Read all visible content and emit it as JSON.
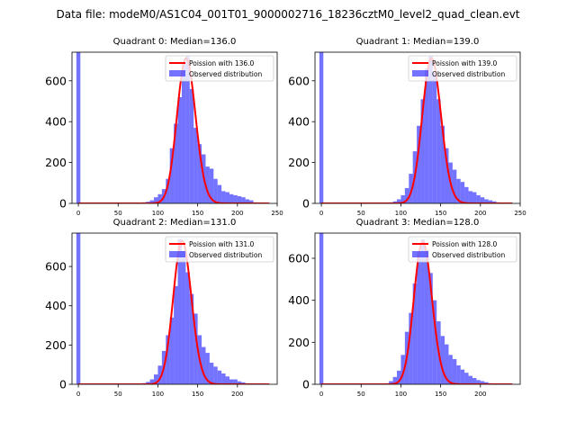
{
  "suptitle": "Data file: modeM0/AS1C04_001T01_9000002716_18236cztM0_level2_quad_clean.evt",
  "colors": {
    "hist": "#0000ff",
    "fit": "#ff0000",
    "axis": "#000000"
  },
  "legend_labels": {
    "observed": "Observed distribution"
  },
  "chart_data": [
    {
      "type": "bar",
      "title": "Quadrant 0: Median=136.0",
      "xlim": [
        -8,
        250
      ],
      "ylim": [
        0,
        740
      ],
      "xticks": [
        0,
        50,
        100,
        150,
        200,
        250
      ],
      "yticks": [
        0,
        200,
        400,
        600
      ],
      "legend_position": "top-right",
      "fit_label": "Poission with 136.0",
      "zero_bin_height": 740,
      "hist": {
        "bin_width": 5,
        "edges_start": [
          75,
          80,
          85,
          90,
          95,
          100,
          105,
          110,
          115,
          120,
          125,
          130,
          135,
          140,
          145,
          150,
          155,
          160,
          165,
          170,
          175,
          180,
          185,
          190,
          195,
          200,
          205,
          210,
          215,
          220
        ],
        "values": [
          2,
          5,
          8,
          15,
          30,
          45,
          70,
          120,
          270,
          390,
          520,
          690,
          720,
          560,
          370,
          290,
          240,
          180,
          170,
          120,
          90,
          60,
          55,
          45,
          40,
          35,
          30,
          20,
          15,
          5
        ]
      },
      "fit": {
        "mean": 136,
        "peak": 710
      }
    },
    {
      "type": "bar",
      "title": "Quadrant 1: Median=139.0",
      "xlim": [
        -8,
        250
      ],
      "ylim": [
        0,
        740
      ],
      "xticks": [
        0,
        50,
        100,
        150,
        200,
        250
      ],
      "yticks": [
        0,
        200,
        400,
        600
      ],
      "legend_position": "top-right",
      "fit_label": "Poission with 139.0",
      "zero_bin_height": 740,
      "hist": {
        "bin_width": 5,
        "edges_start": [
          85,
          90,
          95,
          100,
          105,
          110,
          115,
          120,
          125,
          130,
          135,
          140,
          145,
          150,
          155,
          160,
          165,
          170,
          175,
          180,
          185,
          190,
          195,
          200,
          205,
          210,
          215,
          220
        ],
        "values": [
          5,
          10,
          20,
          40,
          75,
          145,
          255,
          380,
          510,
          660,
          720,
          640,
          510,
          380,
          270,
          200,
          165,
          120,
          105,
          80,
          60,
          55,
          40,
          30,
          20,
          15,
          10,
          5
        ]
      },
      "fit": {
        "mean": 139,
        "peak": 710
      }
    },
    {
      "type": "bar",
      "title": "Quadrant 2: Median=131.0",
      "xlim": [
        -8,
        250
      ],
      "ylim": [
        0,
        770
      ],
      "xticks": [
        0,
        50,
        100,
        150,
        200
      ],
      "yticks": [
        0,
        200,
        400,
        600
      ],
      "legend_position": "top-right",
      "fit_label": "Poission with 131.0",
      "zero_bin_height": 770,
      "hist": {
        "bin_width": 5,
        "edges_start": [
          75,
          80,
          85,
          90,
          95,
          100,
          105,
          110,
          115,
          120,
          125,
          130,
          135,
          140,
          145,
          150,
          155,
          160,
          165,
          170,
          175,
          180,
          185,
          190,
          195,
          200,
          205,
          210,
          215
        ],
        "values": [
          3,
          6,
          12,
          25,
          50,
          95,
          170,
          250,
          340,
          500,
          740,
          680,
          570,
          460,
          360,
          250,
          190,
          160,
          110,
          90,
          70,
          55,
          40,
          25,
          25,
          15,
          10,
          5,
          3
        ]
      },
      "fit": {
        "mean": 131,
        "peak": 730
      }
    },
    {
      "type": "bar",
      "title": "Quadrant 3: Median=128.0",
      "xlim": [
        -8,
        250
      ],
      "ylim": [
        0,
        720
      ],
      "xticks": [
        0,
        50,
        100,
        150,
        200
      ],
      "yticks": [
        0,
        200,
        400,
        600
      ],
      "legend_position": "top-right",
      "fit_label": "Poission with 128.0",
      "zero_bin_height": 720,
      "hist": {
        "bin_width": 5,
        "edges_start": [
          80,
          85,
          90,
          95,
          100,
          105,
          110,
          115,
          120,
          125,
          130,
          135,
          140,
          145,
          150,
          155,
          160,
          165,
          170,
          175,
          180,
          185,
          190,
          195,
          200,
          205,
          210
        ],
        "values": [
          5,
          15,
          35,
          65,
          140,
          250,
          340,
          480,
          630,
          690,
          640,
          530,
          400,
          300,
          230,
          190,
          140,
          120,
          90,
          70,
          55,
          40,
          30,
          20,
          15,
          10,
          5
        ]
      },
      "fit": {
        "mean": 128,
        "peak": 680
      }
    }
  ]
}
